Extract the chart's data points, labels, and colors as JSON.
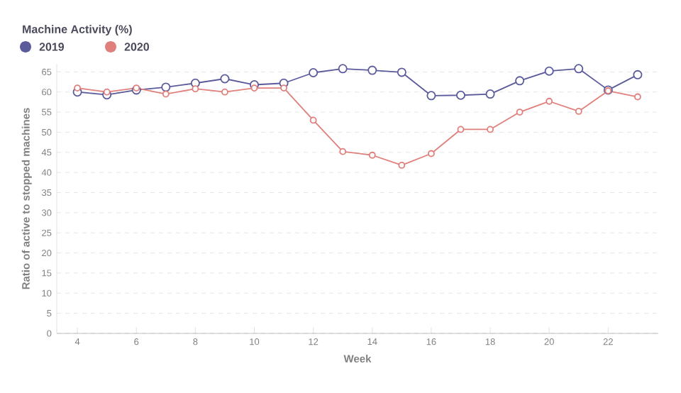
{
  "chart_data": {
    "type": "line",
    "title": "Machine Activity (%)",
    "xlabel": "Week",
    "ylabel": "Ratio of active to stopped machines",
    "x": [
      4,
      5,
      6,
      7,
      8,
      9,
      10,
      11,
      12,
      13,
      14,
      15,
      16,
      17,
      18,
      19,
      20,
      21,
      22,
      23
    ],
    "series": [
      {
        "name": "2019",
        "color": "#5b5b9c",
        "values": [
          60,
          59.3,
          60.5,
          61.2,
          62.2,
          63.3,
          61.8,
          62.2,
          64.8,
          65.8,
          65.4,
          64.9,
          59.1,
          59.2,
          59.5,
          62.8,
          65.2,
          65.8,
          60.5,
          64.3
        ]
      },
      {
        "name": "2020",
        "color": "#e0807c",
        "values": [
          61,
          60,
          61,
          59.5,
          60.8,
          60,
          61,
          61,
          53,
          45.2,
          44.3,
          41.8,
          44.7,
          50.7,
          50.7,
          55,
          57.7,
          55.2,
          60.3,
          58.8
        ]
      }
    ],
    "xlim": [
      3.3,
      23.7
    ],
    "xticks": [
      4,
      6,
      8,
      10,
      12,
      14,
      16,
      18,
      20,
      22
    ],
    "ylim": [
      0,
      67
    ],
    "yticks": [
      0,
      5,
      10,
      15,
      20,
      25,
      30,
      35,
      40,
      45,
      50,
      55,
      60,
      65
    ],
    "grid": "y",
    "legend": "top left",
    "marker": "circle",
    "line_style": "solid"
  }
}
